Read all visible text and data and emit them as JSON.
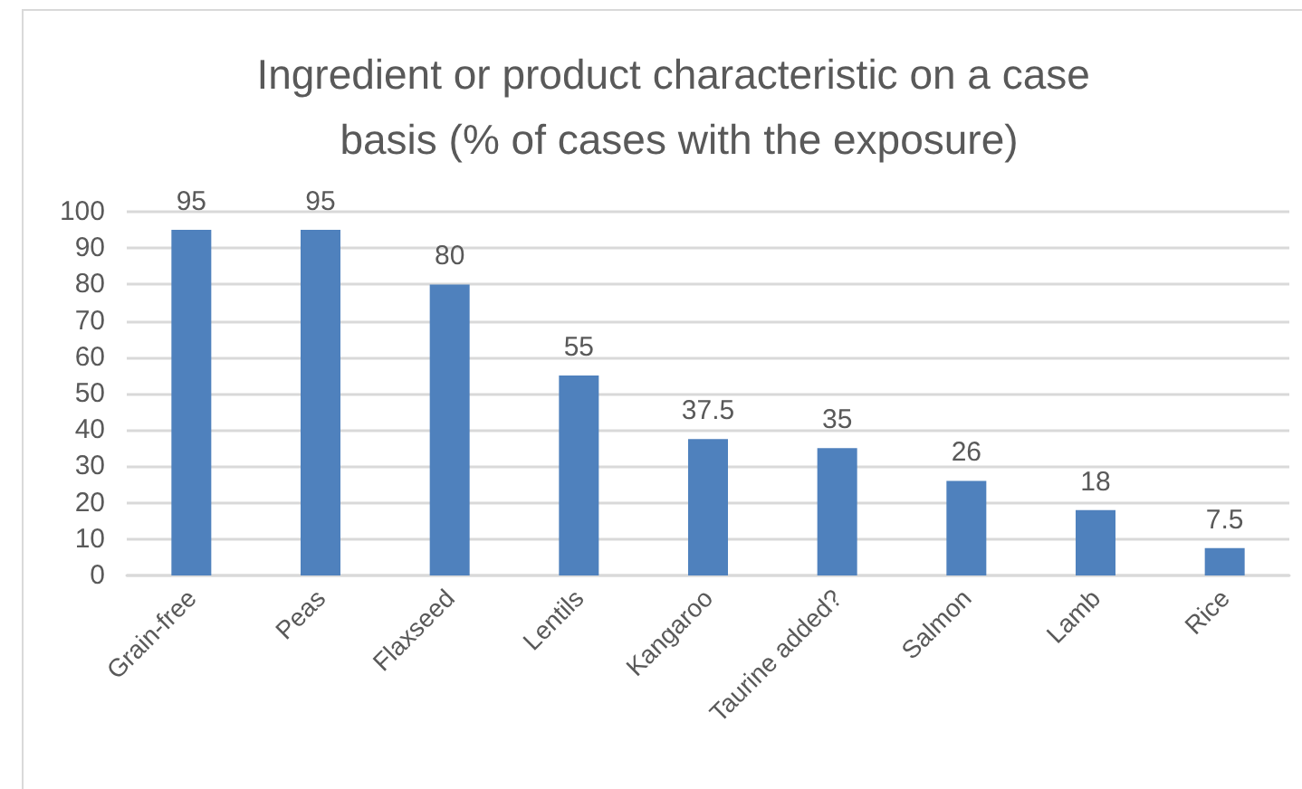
{
  "chart_data": {
    "type": "bar",
    "title": "Ingredient or product characteristic on a case basis (% of cases with the exposure)",
    "categories": [
      "Grain-free",
      "Peas",
      "Flaxseed",
      "Lentils",
      "Kangaroo",
      "Taurine added?",
      "Salmon",
      "Lamb",
      "Rice"
    ],
    "values": [
      95,
      95,
      80,
      55,
      37.5,
      35,
      26,
      18,
      7.5
    ],
    "color": "#4f81bd",
    "ylim": [
      0,
      100
    ],
    "yticks": [
      0,
      10,
      20,
      30,
      40,
      50,
      60,
      70,
      80,
      90,
      100
    ],
    "grid": "y",
    "data_labels": true
  }
}
